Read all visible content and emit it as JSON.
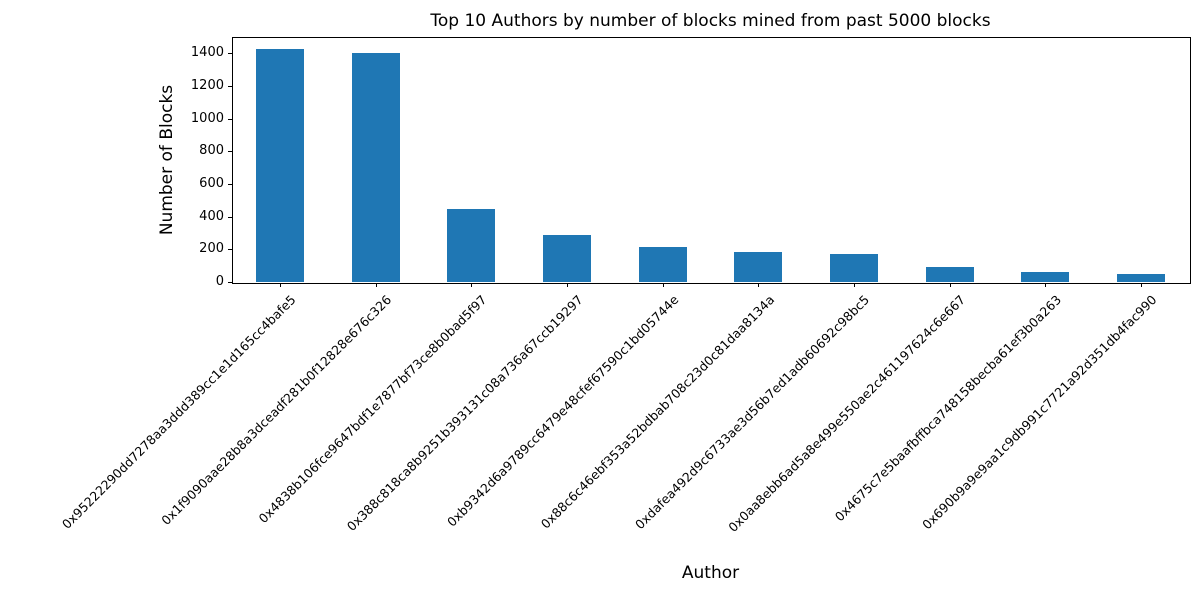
{
  "figure": {
    "background": "#ffffff",
    "text_color": "#000000"
  },
  "chart_data": {
    "type": "bar",
    "title": "Top 10 Authors by number of blocks mined from past 5000 blocks",
    "xlabel": "Author",
    "ylabel": "Number of Blocks",
    "categories": [
      "0x95222290dd7278aa3ddd389cc1e1d165cc4bafe5",
      "0x1f9090aae28b8a3dceadf281b0f12828e676c326",
      "0x4838b106fce9647bdf1e7877bf73ce8b0bad5f97",
      "0x388c818ca8b9251b393131c08a736a67ccb19297",
      "0xb9342d6a9789cc6479e48cfef67590c1bd05744e",
      "0x88c6c46ebf353a52bdbab708c23d0c81daa8134a",
      "0xdafea492d9c6733ae3d56b7ed1adb60692c98bc5",
      "0x0aa8ebb6ad5a8e499e550ae2c461197624c6e667",
      "0x4675c7e5baafbffbca748158becba61ef3b0a263",
      "0x690b9a9e9aa1c9db991c7721a92d351db4fac990"
    ],
    "values": [
      1425,
      1400,
      450,
      290,
      212,
      182,
      170,
      90,
      60,
      52
    ],
    "yticks": [
      0,
      200,
      400,
      600,
      800,
      1000,
      1200,
      1400
    ],
    "ylim": [
      0,
      1500
    ],
    "bar_color": "#1f77b4",
    "grid": false,
    "legend": null,
    "x_tick_label_rotation_deg": 45
  }
}
